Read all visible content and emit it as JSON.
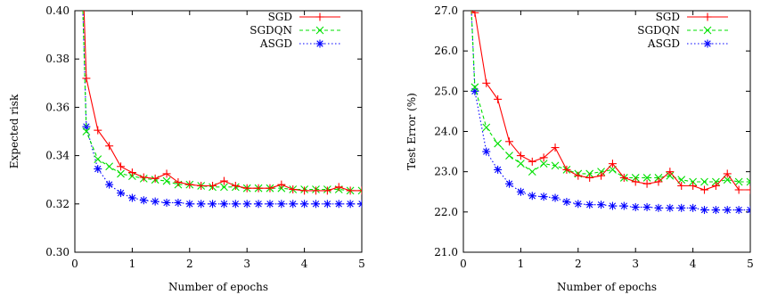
{
  "chart_data": [
    {
      "type": "line",
      "title": "",
      "xlabel": "Number of epochs",
      "ylabel": "Expected risk",
      "xlim": [
        0,
        5
      ],
      "ylim": [
        0.3,
        0.4
      ],
      "xticks": [
        0,
        1,
        2,
        3,
        4,
        5
      ],
      "yticks": [
        0.3,
        0.32,
        0.34,
        0.36,
        0.38,
        0.4
      ],
      "ytick_labels": [
        "0.30",
        "0.32",
        "0.34",
        "0.36",
        "0.38",
        "0.40"
      ],
      "grid": false,
      "legend_position": "top-right",
      "series": [
        {
          "name": "SGD",
          "color": "#ff0000",
          "marker": "plus",
          "dash": "solid",
          "x": [
            0.14,
            0.16,
            0.2,
            0.4,
            0.6,
            0.8,
            1.0,
            1.2,
            1.4,
            1.6,
            1.8,
            2.0,
            2.2,
            2.4,
            2.6,
            2.8,
            3.0,
            3.2,
            3.4,
            3.6,
            3.8,
            4.0,
            4.2,
            4.4,
            4.6,
            4.8,
            5.0
          ],
          "values": [
            0.4,
            0.4,
            0.372,
            0.3505,
            0.344,
            0.3355,
            0.333,
            0.331,
            0.3305,
            0.3325,
            0.329,
            0.328,
            0.3275,
            0.3275,
            0.3295,
            0.3275,
            0.3265,
            0.3265,
            0.3265,
            0.328,
            0.326,
            0.3255,
            0.3255,
            0.3255,
            0.327,
            0.3255,
            0.3255
          ]
        },
        {
          "name": "SGDQN",
          "color": "#00e000",
          "marker": "x",
          "dash": "dashed",
          "x": [
            0.14,
            0.2,
            0.4,
            0.6,
            0.8,
            1.0,
            1.2,
            1.4,
            1.6,
            1.8,
            2.0,
            2.2,
            2.4,
            2.6,
            2.8,
            3.0,
            3.2,
            3.4,
            3.6,
            3.8,
            4.0,
            4.2,
            4.4,
            4.6,
            4.8,
            5.0
          ],
          "values": [
            0.4,
            0.35,
            0.3385,
            0.3355,
            0.3325,
            0.3315,
            0.3305,
            0.33,
            0.3295,
            0.328,
            0.328,
            0.3275,
            0.327,
            0.327,
            0.327,
            0.3265,
            0.3265,
            0.3265,
            0.3265,
            0.326,
            0.326,
            0.326,
            0.326,
            0.326,
            0.3255,
            0.3255
          ]
        },
        {
          "name": "ASGD",
          "color": "#0000ff",
          "marker": "star",
          "dash": "dotted",
          "x": [
            0.14,
            0.2,
            0.4,
            0.6,
            0.8,
            1.0,
            1.2,
            1.4,
            1.6,
            1.8,
            2.0,
            2.2,
            2.4,
            2.6,
            2.8,
            3.0,
            3.2,
            3.4,
            3.6,
            3.8,
            4.0,
            4.2,
            4.4,
            4.6,
            4.8,
            5.0
          ],
          "values": [
            0.4,
            0.352,
            0.3345,
            0.328,
            0.3245,
            0.3225,
            0.3215,
            0.321,
            0.3205,
            0.3205,
            0.32,
            0.32,
            0.32,
            0.32,
            0.32,
            0.32,
            0.32,
            0.32,
            0.32,
            0.32,
            0.32,
            0.32,
            0.32,
            0.32,
            0.32,
            0.32
          ]
        }
      ]
    },
    {
      "type": "line",
      "title": "",
      "xlabel": "Number of epochs",
      "ylabel": "Test Error (%)",
      "xlim": [
        0,
        5
      ],
      "ylim": [
        21.0,
        27.0
      ],
      "xticks": [
        0,
        1,
        2,
        3,
        4,
        5
      ],
      "yticks": [
        21.0,
        22.0,
        23.0,
        24.0,
        25.0,
        26.0,
        27.0
      ],
      "ytick_labels": [
        "21.0",
        "22.0",
        "23.0",
        "24.0",
        "25.0",
        "26.0",
        "27.0"
      ],
      "grid": false,
      "legend_position": "top-right",
      "series": [
        {
          "name": "SGD",
          "color": "#ff0000",
          "marker": "plus",
          "dash": "solid",
          "x": [
            0.14,
            0.2,
            0.4,
            0.6,
            0.8,
            1.0,
            1.2,
            1.4,
            1.6,
            1.8,
            2.0,
            2.2,
            2.4,
            2.6,
            2.8,
            3.0,
            3.2,
            3.4,
            3.6,
            3.8,
            4.0,
            4.2,
            4.4,
            4.6,
            4.8,
            5.0
          ],
          "values": [
            27.0,
            26.95,
            25.2,
            24.8,
            23.75,
            23.4,
            23.25,
            23.35,
            23.6,
            23.05,
            22.9,
            22.85,
            22.9,
            23.2,
            22.85,
            22.75,
            22.7,
            22.75,
            23.0,
            22.65,
            22.65,
            22.55,
            22.65,
            22.95,
            22.55,
            22.55
          ]
        },
        {
          "name": "SGDQN",
          "color": "#00e000",
          "marker": "x",
          "dash": "dashed",
          "x": [
            0.14,
            0.2,
            0.4,
            0.6,
            0.8,
            1.0,
            1.2,
            1.4,
            1.6,
            1.8,
            2.0,
            2.2,
            2.4,
            2.6,
            2.8,
            3.0,
            3.2,
            3.4,
            3.6,
            3.8,
            4.0,
            4.2,
            4.4,
            4.6,
            4.8,
            5.0
          ],
          "values": [
            27.0,
            25.1,
            24.1,
            23.7,
            23.4,
            23.2,
            23.0,
            23.2,
            23.15,
            23.05,
            22.95,
            22.95,
            23.0,
            23.05,
            22.85,
            22.85,
            22.85,
            22.85,
            22.9,
            22.8,
            22.75,
            22.75,
            22.75,
            22.8,
            22.75,
            22.75
          ]
        },
        {
          "name": "ASGD",
          "color": "#0000ff",
          "marker": "star",
          "dash": "dotted",
          "x": [
            0.14,
            0.2,
            0.4,
            0.6,
            0.8,
            1.0,
            1.2,
            1.4,
            1.6,
            1.8,
            2.0,
            2.2,
            2.4,
            2.6,
            2.8,
            3.0,
            3.2,
            3.4,
            3.6,
            3.8,
            4.0,
            4.2,
            4.4,
            4.6,
            4.8,
            5.0
          ],
          "values": [
            27.0,
            25.0,
            23.5,
            23.05,
            22.7,
            22.5,
            22.4,
            22.38,
            22.35,
            22.25,
            22.2,
            22.18,
            22.18,
            22.15,
            22.15,
            22.12,
            22.12,
            22.1,
            22.1,
            22.1,
            22.1,
            22.05,
            22.05,
            22.05,
            22.05,
            22.05
          ]
        }
      ]
    }
  ]
}
